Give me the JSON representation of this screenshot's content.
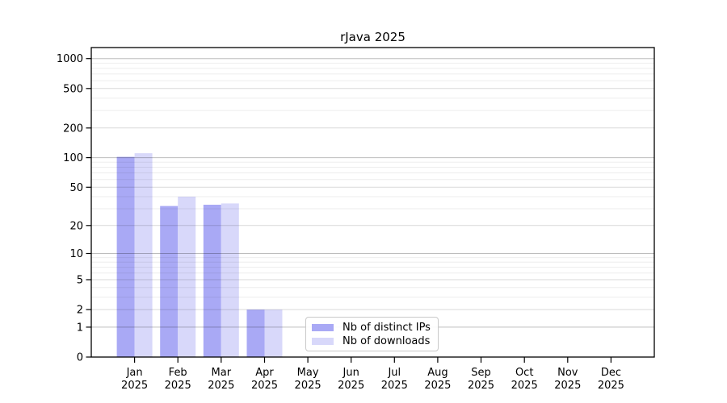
{
  "title": "rJava 2025",
  "chart_data": {
    "type": "bar",
    "title": "rJava 2025",
    "categories": [
      "Jan 2025",
      "Feb 2025",
      "Mar 2025",
      "Apr 2025",
      "May 2025",
      "Jun 2025",
      "Jul 2025",
      "Aug 2025",
      "Sep 2025",
      "Oct 2025",
      "Nov 2025",
      "Dec 2025"
    ],
    "series": [
      {
        "name": "Nb of distinct IPs",
        "color": "#a9a9f5",
        "values": [
          102,
          32,
          33,
          2,
          0,
          0,
          0,
          0,
          0,
          0,
          0,
          0
        ]
      },
      {
        "name": "Nb of downloads",
        "color": "#d8d8fa",
        "values": [
          111,
          40,
          34,
          2,
          0,
          0,
          0,
          0,
          0,
          0,
          0,
          0
        ]
      }
    ],
    "xlabel": "",
    "ylabel": "",
    "yscale": "log1p",
    "ylim": [
      0,
      1292
    ],
    "yticks": [
      0,
      1,
      2,
      5,
      10,
      20,
      50,
      100,
      200,
      500,
      1000
    ],
    "minor_yticks": [
      3,
      4,
      6,
      7,
      8,
      9,
      30,
      40,
      60,
      70,
      80,
      90,
      300,
      400,
      600,
      700,
      800,
      900
    ],
    "grid": "horizontal, major and minor",
    "legend_position": "lower center, inside plot"
  }
}
